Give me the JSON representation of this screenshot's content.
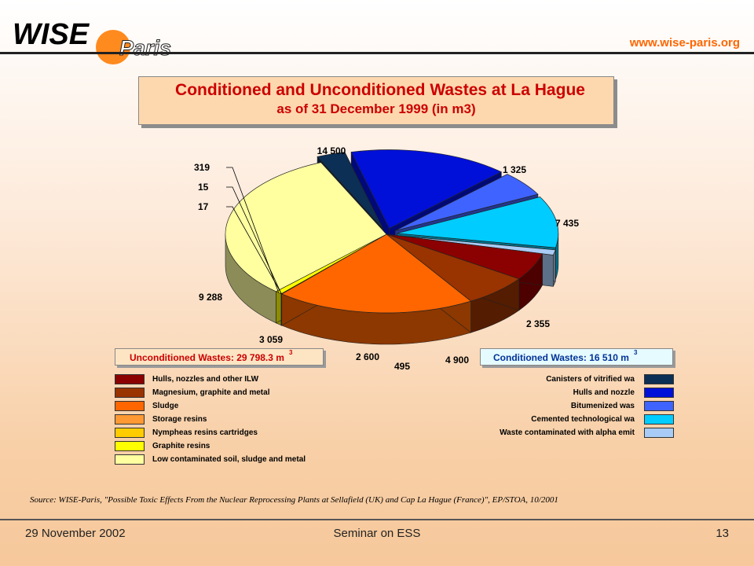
{
  "header": {
    "logo_main": "WISE",
    "logo_sub": "Paris",
    "url": "www.wise-paris.org"
  },
  "title": {
    "line1": "Conditioned and Unconditioned Wastes at La Hague",
    "line2": "as of 31 December 1999 (in m3)"
  },
  "unconditioned_box": {
    "label": "Unconditioned Wastes: 29 798.3 m",
    "sup": "3"
  },
  "conditioned_box": {
    "label": "Conditioned Wastes: 16 510 m",
    "sup": "3"
  },
  "chart_data": {
    "type": "pie",
    "title": "Conditioned and Unconditioned Wastes at La Hague as of 31 December 1999 (in m3)",
    "slices": [
      {
        "name": "Canisters of vitrified waste",
        "group": "conditioned",
        "value": 1325,
        "label": "1 325",
        "color": "#0c2f55"
      },
      {
        "name": "Hulls and nozzles",
        "group": "conditioned",
        "value": 7435,
        "label": "7 435",
        "color": "#0010d8"
      },
      {
        "name": "Bitumenized waste",
        "group": "conditioned",
        "value": 2355,
        "label": "2 355",
        "color": "#3f63ff"
      },
      {
        "name": "Cemented technological waste",
        "group": "conditioned",
        "value": 4900,
        "label": "4 900",
        "color": "#00ccff"
      },
      {
        "name": "Waste contaminated with alpha emitters",
        "group": "conditioned",
        "value": 495,
        "label": "495",
        "color": "#a8ccf5"
      },
      {
        "name": "Hulls, nozzles and other ILW",
        "group": "unconditioned",
        "value": 2600,
        "label": "2 600",
        "color": "#8b0000"
      },
      {
        "name": "Magnesium, graphite and metal",
        "group": "unconditioned",
        "value": 3059,
        "label": "3 059",
        "color": "#993300"
      },
      {
        "name": "Sludge",
        "group": "unconditioned",
        "value": 9288,
        "label": "9 288",
        "color": "#ff6600"
      },
      {
        "name": "Storage resins",
        "group": "unconditioned",
        "value": 17,
        "label": "17",
        "color": "#ff9933"
      },
      {
        "name": "Nympheas resins cartridges",
        "group": "unconditioned",
        "value": 15,
        "label": "15",
        "color": "#ffcc00"
      },
      {
        "name": "Graphite resins",
        "group": "unconditioned",
        "value": 319,
        "label": "319",
        "color": "#ffff00"
      },
      {
        "name": "Low contaminated soil, sludge and metal",
        "group": "unconditioned",
        "value": 14500,
        "label": "14 500",
        "color": "#ffffa0"
      }
    ],
    "legend_unconditioned": [
      {
        "label": "Hulls, nozzles and other ILW",
        "color": "#8b0000"
      },
      {
        "label": "Magnesium, graphite and metal",
        "color": "#993300"
      },
      {
        "label": "Sludge",
        "color": "#ff6600"
      },
      {
        "label": "Storage resins",
        "color": "#ff9933"
      },
      {
        "label": "Nympheas resins cartridges",
        "color": "#ffcc00"
      },
      {
        "label": "Graphite resins",
        "color": "#ffff00"
      },
      {
        "label": "Low contaminated soil, sludge and metal",
        "color": "#ffffa0"
      }
    ],
    "legend_conditioned": [
      {
        "label": "Canisters of vitrified wa",
        "color": "#0c2f55"
      },
      {
        "label": "Hulls and nozzle",
        "color": "#0010d8"
      },
      {
        "label": "Bitumenized was",
        "color": "#3f63ff"
      },
      {
        "label": "Cemented technological wa",
        "color": "#00ccff"
      },
      {
        "label": "Waste contaminated with alpha emit",
        "color": "#a8ccf5"
      }
    ]
  },
  "source": "Source: WISE-Paris, \"Possible Toxic Effects From the Nuclear Reprocessing Plants at Sellafield (UK) and Cap La Hague (France)\", EP/STOA, 10/2001",
  "footer": {
    "date": "29 November 2002",
    "event": "Seminar on ESS",
    "page": "13"
  }
}
